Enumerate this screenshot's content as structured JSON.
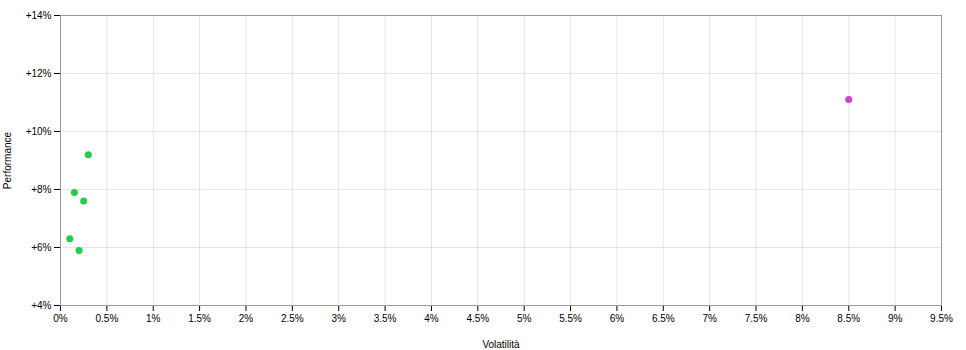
{
  "chart_data": {
    "type": "scatter",
    "xlabel": "Volatilità",
    "ylabel": "Performance",
    "xlim": [
      0,
      0.095
    ],
    "ylim": [
      0.04,
      0.14
    ],
    "xticks": [
      {
        "value": 0,
        "label": "0%"
      },
      {
        "value": 0.005,
        "label": "0.5%"
      },
      {
        "value": 0.01,
        "label": "1%"
      },
      {
        "value": 0.015,
        "label": "1.5%"
      },
      {
        "value": 0.02,
        "label": "2%"
      },
      {
        "value": 0.025,
        "label": "2.5%"
      },
      {
        "value": 0.03,
        "label": "3%"
      },
      {
        "value": 0.035,
        "label": "3.5%"
      },
      {
        "value": 0.04,
        "label": "4%"
      },
      {
        "value": 0.045,
        "label": "4.5%"
      },
      {
        "value": 0.05,
        "label": "5%"
      },
      {
        "value": 0.055,
        "label": "5.5%"
      },
      {
        "value": 0.06,
        "label": "6%"
      },
      {
        "value": 0.065,
        "label": "6.5%"
      },
      {
        "value": 0.07,
        "label": "7%"
      },
      {
        "value": 0.075,
        "label": "7.5%"
      },
      {
        "value": 0.08,
        "label": "8%"
      },
      {
        "value": 0.085,
        "label": "8.5%"
      },
      {
        "value": 0.09,
        "label": "9%"
      },
      {
        "value": 0.095,
        "label": "9.5%"
      }
    ],
    "yticks": [
      {
        "value": 0.04,
        "label": "+4%"
      },
      {
        "value": 0.06,
        "label": "+6%"
      },
      {
        "value": 0.08,
        "label": "+8%"
      },
      {
        "value": 0.1,
        "label": "+10%"
      },
      {
        "value": 0.12,
        "label": "+12%"
      },
      {
        "value": 0.14,
        "label": "+14%"
      }
    ],
    "grid": true,
    "series": [
      {
        "color": "#22cc44",
        "x": [
          0.003,
          0.0015,
          0.0025,
          0.001,
          0.002
        ],
        "values": [
          0.092,
          0.079,
          0.076,
          0.063,
          0.059
        ]
      },
      {
        "color": "#cc44cc",
        "x": [
          0.085
        ],
        "values": [
          0.111
        ]
      }
    ]
  }
}
